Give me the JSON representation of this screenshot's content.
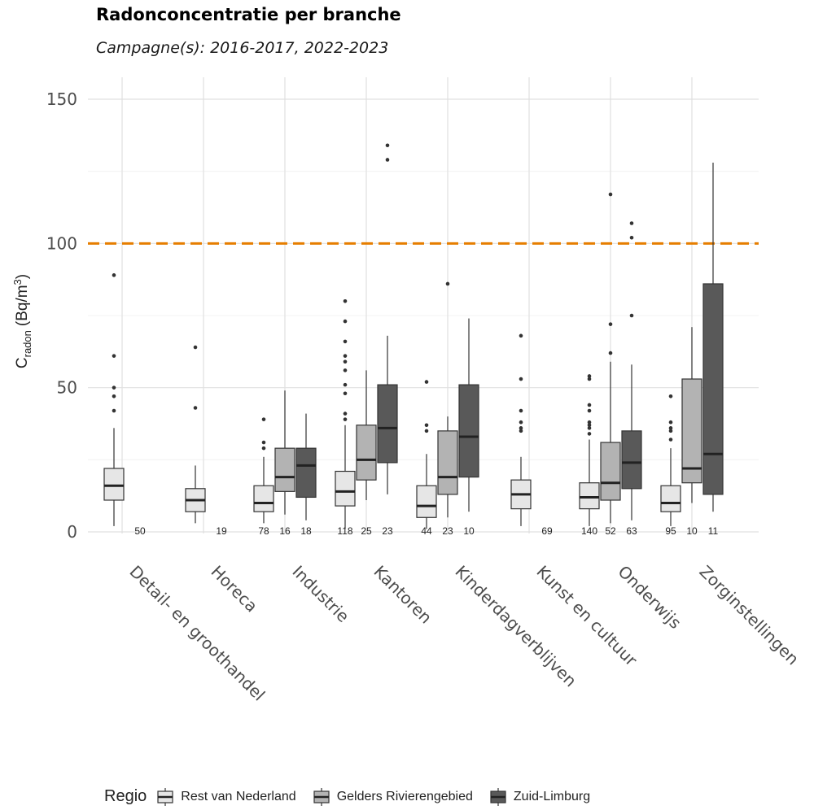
{
  "chart_data": {
    "type": "boxplot",
    "title": "Radonconcentratie per branche",
    "subtitle": "Campagne(s): 2016-2017, 2022-2023",
    "ylabel_main": "C",
    "ylabel_sub": "radon",
    "ylabel_unit": "(Bq/m",
    "ylabel_sup": "3",
    "ylabel_close": ")",
    "ylim": [
      0,
      150
    ],
    "yticks": [
      0,
      50,
      100,
      150
    ],
    "reference_line": 100,
    "reference_color": "#E67E00",
    "legend_title": "Regio",
    "series": [
      {
        "name": "Rest van Nederland",
        "color": "#E6E6E6"
      },
      {
        "name": "Gelders Rivierengebied",
        "color": "#B3B3B3"
      },
      {
        "name": "Zuid-Limburg",
        "color": "#595959"
      }
    ],
    "categories": [
      {
        "label": "Detail- en groothandel",
        "boxes": [
          {
            "series": 0,
            "whislo": 2,
            "q1": 11,
            "med": 16,
            "q3": 22,
            "whishi": 36,
            "fliers": [
              42,
              47,
              50,
              61,
              89
            ],
            "n": "50"
          }
        ]
      },
      {
        "label": "Horeca",
        "boxes": [
          {
            "series": 0,
            "whislo": 3,
            "q1": 7,
            "med": 11,
            "q3": 15,
            "whishi": 23,
            "fliers": [
              43,
              64
            ],
            "n": "19"
          }
        ]
      },
      {
        "label": "Industrie",
        "boxes": [
          {
            "series": 0,
            "whislo": 3,
            "q1": 7,
            "med": 10,
            "q3": 16,
            "whishi": 26,
            "fliers": [
              29,
              31,
              39
            ],
            "n": "78"
          },
          {
            "series": 1,
            "whislo": 6,
            "q1": 14,
            "med": 19,
            "q3": 29,
            "whishi": 49,
            "fliers": [],
            "n": "16"
          },
          {
            "series": 2,
            "whislo": 4,
            "q1": 12,
            "med": 23,
            "q3": 29,
            "whishi": 41,
            "fliers": [],
            "n": "18"
          }
        ]
      },
      {
        "label": "Kantoren",
        "boxes": [
          {
            "series": 0,
            "whislo": 1,
            "q1": 9,
            "med": 14,
            "q3": 21,
            "whishi": 37,
            "fliers": [
              39,
              41,
              48,
              51,
              56,
              59,
              61,
              66,
              73,
              80
            ],
            "n": "118"
          },
          {
            "series": 1,
            "whislo": 11,
            "q1": 18,
            "med": 25,
            "q3": 37,
            "whishi": 56,
            "fliers": [],
            "n": "25"
          },
          {
            "series": 2,
            "whislo": 13,
            "q1": 24,
            "med": 36,
            "q3": 51,
            "whishi": 68,
            "fliers": [
              129,
              134
            ],
            "n": "23"
          }
        ]
      },
      {
        "label": "Kinderdagverblijven",
        "boxes": [
          {
            "series": 0,
            "whislo": 1,
            "q1": 5,
            "med": 9,
            "q3": 16,
            "whishi": 27,
            "fliers": [
              35,
              37,
              52
            ],
            "n": "44"
          },
          {
            "series": 1,
            "whislo": 5,
            "q1": 13,
            "med": 19,
            "q3": 35,
            "whishi": 40,
            "fliers": [
              86
            ],
            "n": "23"
          },
          {
            "series": 2,
            "whislo": 7,
            "q1": 19,
            "med": 33,
            "q3": 51,
            "whishi": 74,
            "fliers": [],
            "n": "10"
          }
        ]
      },
      {
        "label": "Kunst en cultuur",
        "boxes": [
          {
            "series": 0,
            "whislo": 2,
            "q1": 8,
            "med": 13,
            "q3": 18,
            "whishi": 26,
            "fliers": [
              35,
              36,
              38,
              42,
              53,
              68
            ],
            "n": "69"
          }
        ]
      },
      {
        "label": "Onderwijs",
        "boxes": [
          {
            "series": 0,
            "whislo": 2,
            "q1": 8,
            "med": 12,
            "q3": 17,
            "whishi": 32,
            "fliers": [
              34,
              36,
              37,
              38,
              42,
              44,
              53,
              54
            ],
            "n": "140"
          },
          {
            "series": 1,
            "whislo": 3,
            "q1": 11,
            "med": 17,
            "q3": 31,
            "whishi": 59,
            "fliers": [
              62,
              72,
              117
            ],
            "n": "52"
          },
          {
            "series": 2,
            "whislo": 4,
            "q1": 15,
            "med": 24,
            "q3": 35,
            "whishi": 58,
            "fliers": [
              75,
              102,
              107
            ],
            "n": "63"
          }
        ]
      },
      {
        "label": "Zorginstellingen",
        "boxes": [
          {
            "series": 0,
            "whislo": 2,
            "q1": 7,
            "med": 10,
            "q3": 16,
            "whishi": 29,
            "fliers": [
              32,
              35,
              36,
              38,
              47
            ],
            "n": "95"
          },
          {
            "series": 1,
            "whislo": 10,
            "q1": 17,
            "med": 22,
            "q3": 53,
            "whishi": 71,
            "fliers": [],
            "n": "10"
          },
          {
            "series": 2,
            "whislo": 7,
            "q1": 13,
            "med": 27,
            "q3": 86,
            "whishi": 128,
            "fliers": [],
            "n": "11"
          }
        ]
      }
    ]
  }
}
